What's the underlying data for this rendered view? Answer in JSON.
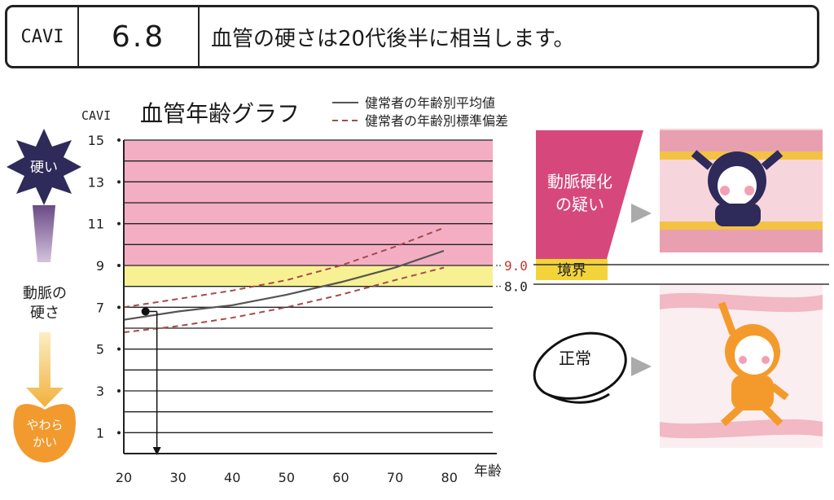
{
  "header": {
    "label": "CAVI",
    "value": "6.8",
    "text": "血管の硬さは20代後半に相当します。"
  },
  "chart_data": {
    "type": "line",
    "title": "血管年齢グラフ",
    "ylabel": "CAVI",
    "xlabel": "年齢",
    "x_ticks": [
      "20",
      "30",
      "40",
      "50",
      "60",
      "70",
      "80"
    ],
    "y_ticks": [
      "1",
      "3",
      "5",
      "7",
      "9",
      "11",
      "13",
      "15"
    ],
    "xlim": [
      20,
      88
    ],
    "ylim": [
      0,
      15
    ],
    "grid": true,
    "legend": [
      {
        "name": "健常者の年齢別平均値",
        "style": "solid",
        "color": "#555555"
      },
      {
        "name": "健常者の年齢別標準偏差",
        "style": "dashed",
        "color": "#a64a4a"
      }
    ],
    "series": [
      {
        "name": "健常者の年齢別平均値",
        "color": "#555555",
        "dash": false,
        "x": [
          20,
          30,
          40,
          50,
          60,
          70,
          79
        ],
        "y": [
          6.4,
          6.8,
          7.1,
          7.6,
          8.2,
          8.9,
          9.7
        ]
      },
      {
        "name": "健常者の年齢別標準偏差",
        "color": "#a64a4a",
        "dash": true,
        "x": [
          20,
          30,
          40,
          50,
          60,
          70,
          79
        ],
        "y": [
          7.0,
          7.4,
          7.8,
          8.3,
          9.0,
          9.9,
          10.8
        ]
      },
      {
        "name": "健常者の年齢別標準偏差",
        "color": "#a64a4a",
        "dash": true,
        "x": [
          20,
          30,
          40,
          50,
          60,
          70,
          79
        ],
        "y": [
          5.8,
          6.1,
          6.5,
          7.0,
          7.6,
          8.3,
          8.9
        ]
      }
    ],
    "bands": [
      {
        "from": 9.0,
        "to": 15.0,
        "color": "#f4aec4"
      },
      {
        "from": 8.0,
        "to": 9.0,
        "color": "#f7f194"
      }
    ],
    "marker": {
      "x": 24,
      "y": 6.8
    },
    "thresholds": [
      {
        "value": 9.0,
        "label": "9.0",
        "color": "#c0392b"
      },
      {
        "value": 8.0,
        "label": "8.0",
        "color": "#222222"
      }
    ]
  },
  "scale": {
    "hard_label": "硬い",
    "middle_label_1": "動脈の",
    "middle_label_2": "硬さ",
    "soft_label_1": "やわら",
    "soft_label_2": "かい"
  },
  "zones": {
    "suspect_1": "動脈硬化",
    "suspect_2": "の疑い",
    "border": "境界",
    "normal": "正常"
  },
  "colors": {
    "pink_zone": "#d6487c",
    "border_zone": "#f2d43a",
    "hard_star": "#2e2a5a",
    "soft_blob": "#f29a2e"
  }
}
